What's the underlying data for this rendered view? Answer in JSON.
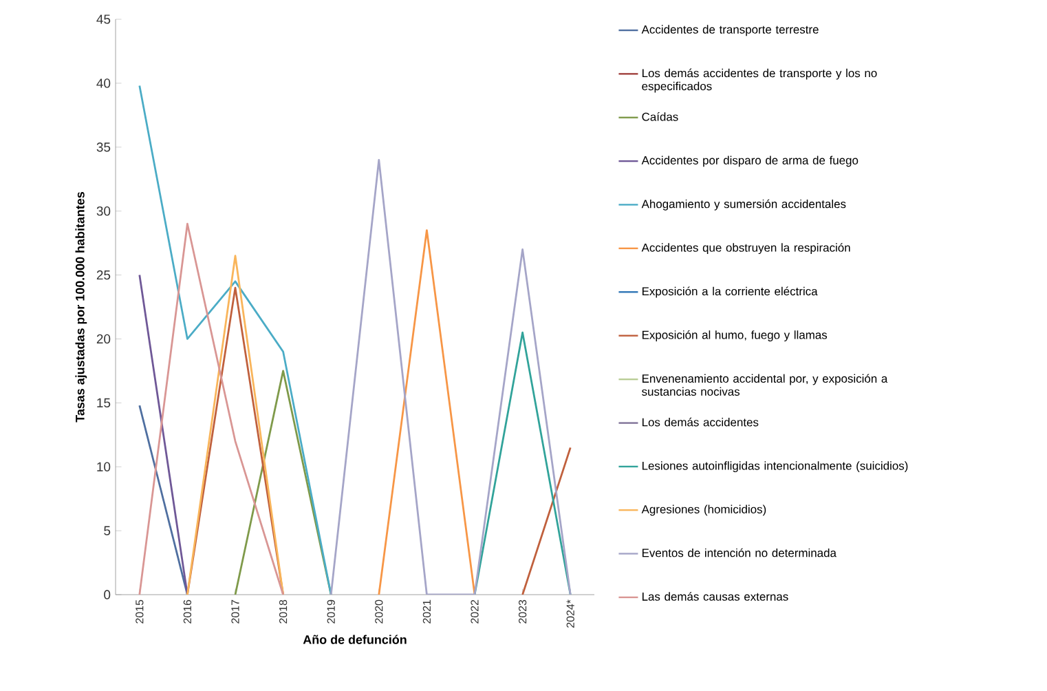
{
  "chart_data": {
    "type": "line",
    "xlabel": "Año de defunción",
    "ylabel": "Tasas ajustadas por 100.000 habitantes",
    "categories": [
      "2015",
      "2016",
      "2017",
      "2018",
      "2019",
      "2020",
      "2021",
      "2022",
      "2023",
      "2024*"
    ],
    "ylim": [
      0,
      45
    ],
    "yticks": [
      0,
      5,
      10,
      15,
      20,
      25,
      30,
      35,
      40,
      45
    ],
    "legend": "right",
    "marker": "none",
    "line_style": "solid",
    "series": [
      {
        "name": "Accidentes de transporte terrestre",
        "color": "#4f6fa0",
        "values": [
          14.8,
          0,
          null,
          null,
          null,
          null,
          null,
          null,
          null,
          null
        ]
      },
      {
        "name": "Los demás accidentes de transporte y los no especificados",
        "color": "#a0403d",
        "values": [
          null,
          null,
          null,
          null,
          null,
          null,
          null,
          null,
          null,
          null
        ]
      },
      {
        "name": "Caídas",
        "color": "#7f9a4a",
        "values": [
          null,
          null,
          0,
          17.5,
          0,
          null,
          null,
          null,
          null,
          null
        ]
      },
      {
        "name": "Accidentes por disparo de arma de fuego",
        "color": "#6f5897",
        "values": [
          25,
          0,
          null,
          null,
          null,
          null,
          null,
          null,
          null,
          null
        ]
      },
      {
        "name": "Ahogamiento y sumersión accidentales",
        "color": "#4bacc6",
        "values": [
          39.8,
          20,
          24.5,
          19,
          0,
          null,
          null,
          null,
          null,
          null
        ]
      },
      {
        "name": "Accidentes que obstruyen la respiración",
        "color": "#f79646",
        "values": [
          null,
          null,
          null,
          null,
          null,
          0,
          28.5,
          0,
          null,
          null
        ]
      },
      {
        "name": "Exposición a la corriente eléctrica",
        "color": "#2e75b6",
        "values": [
          null,
          null,
          null,
          null,
          null,
          null,
          null,
          null,
          null,
          null
        ]
      },
      {
        "name": "Exposición al humo, fuego y llamas",
        "color": "#c0603d",
        "values": [
          null,
          0,
          24,
          0,
          null,
          null,
          null,
          null,
          0,
          11.5
        ]
      },
      {
        "name": "Envenenamiento accidental por, y exposición a sustancias nocivas",
        "color": "#b9cd96",
        "values": [
          null,
          null,
          null,
          null,
          null,
          null,
          null,
          null,
          null,
          null
        ]
      },
      {
        "name": "Los demás accidentes",
        "color": "#7f7398",
        "values": [
          null,
          null,
          null,
          null,
          null,
          null,
          null,
          null,
          null,
          null
        ]
      },
      {
        "name": "Lesiones autoinfligidas intencionalmente (suicidios)",
        "color": "#31a39a",
        "values": [
          null,
          null,
          null,
          null,
          null,
          null,
          null,
          0,
          20.5,
          0
        ]
      },
      {
        "name": "Agresiones (homicidios)",
        "color": "#f9b55b",
        "values": [
          null,
          0,
          26.5,
          0,
          null,
          null,
          null,
          null,
          null,
          null
        ]
      },
      {
        "name": "Eventos de intención no determinada",
        "color": "#a5a5c8",
        "values": [
          null,
          null,
          null,
          null,
          0,
          34,
          0,
          0,
          27,
          0
        ]
      },
      {
        "name": "Las demás causas externas",
        "color": "#d99694",
        "values": [
          0,
          29,
          12,
          0,
          null,
          null,
          null,
          null,
          null,
          null
        ]
      }
    ]
  }
}
